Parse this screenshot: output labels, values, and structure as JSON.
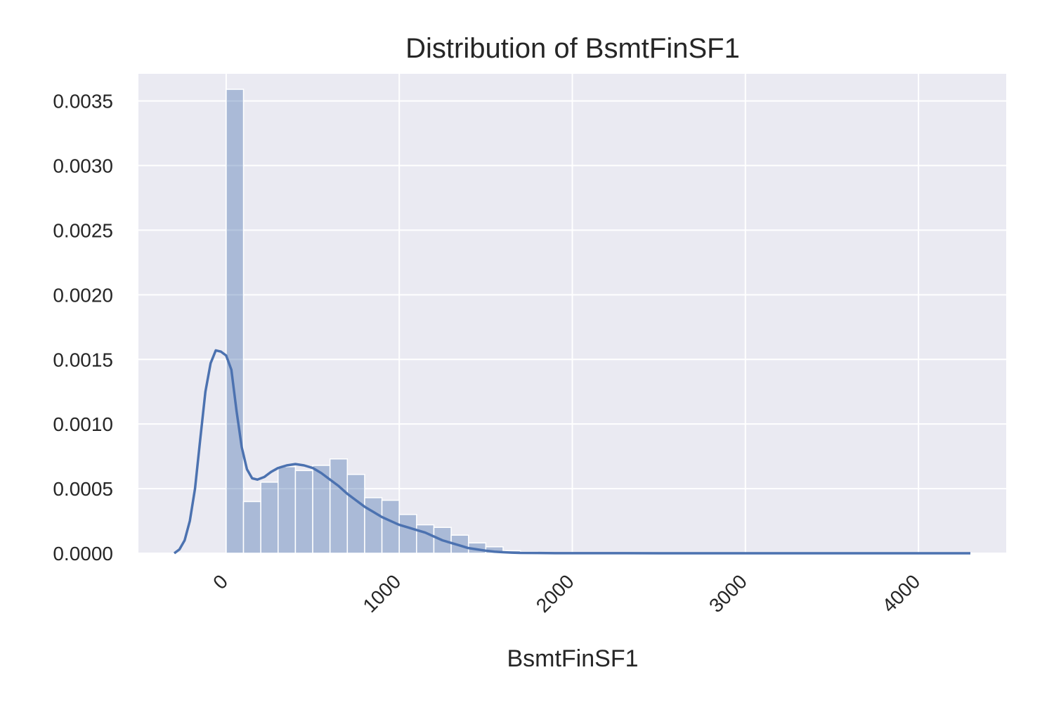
{
  "chart_data": {
    "type": "bar",
    "title": "Distribution of BsmtFinSF1",
    "xlabel": "BsmtFinSF1",
    "ylabel": "",
    "xlim": [
      -507,
      4507
    ],
    "ylim": [
      0,
      0.00371
    ],
    "x_ticks": [
      {
        "value": 0,
        "label": "0"
      },
      {
        "value": 1000,
        "label": "1000"
      },
      {
        "value": 2000,
        "label": "2000"
      },
      {
        "value": 3000,
        "label": "3000"
      },
      {
        "value": 4000,
        "label": "4000"
      }
    ],
    "y_ticks": [
      {
        "value": 0,
        "label": "0.0000"
      },
      {
        "value": 0.0005,
        "label": "0.0005"
      },
      {
        "value": 0.001,
        "label": "0.0010"
      },
      {
        "value": 0.0015,
        "label": "0.0015"
      },
      {
        "value": 0.002,
        "label": "0.0020"
      },
      {
        "value": 0.0025,
        "label": "0.0025"
      },
      {
        "value": 0.003,
        "label": "0.0030"
      },
      {
        "value": 0.0035,
        "label": "0.0035"
      }
    ],
    "grid": true,
    "histogram": {
      "bin_width": 100,
      "bins": [
        {
          "x0": 0,
          "value": 0.00359
        },
        {
          "x0": 100,
          "value": 0.0004
        },
        {
          "x0": 200,
          "value": 0.00055
        },
        {
          "x0": 300,
          "value": 0.00067
        },
        {
          "x0": 400,
          "value": 0.00064
        },
        {
          "x0": 500,
          "value": 0.00068
        },
        {
          "x0": 600,
          "value": 0.00073
        },
        {
          "x0": 700,
          "value": 0.00061
        },
        {
          "x0": 800,
          "value": 0.00043
        },
        {
          "x0": 900,
          "value": 0.00041
        },
        {
          "x0": 1000,
          "value": 0.0003
        },
        {
          "x0": 1100,
          "value": 0.00022
        },
        {
          "x0": 1200,
          "value": 0.0002
        },
        {
          "x0": 1300,
          "value": 0.00014
        },
        {
          "x0": 1400,
          "value": 8e-05
        },
        {
          "x0": 1500,
          "value": 5e-05
        },
        {
          "x0": 1600,
          "value": 2e-05
        },
        {
          "x0": 1700,
          "value": 1e-05
        }
      ]
    },
    "kde": {
      "x": [
        -300,
        -270,
        -240,
        -210,
        -180,
        -150,
        -120,
        -90,
        -60,
        -30,
        0,
        30,
        60,
        90,
        120,
        150,
        180,
        220,
        260,
        300,
        350,
        400,
        450,
        500,
        550,
        600,
        650,
        700,
        750,
        800,
        850,
        900,
        950,
        1000,
        1050,
        1100,
        1150,
        1200,
        1250,
        1300,
        1350,
        1400,
        1450,
        1500,
        1550,
        1600,
        1650,
        1700,
        1800,
        1900,
        2000,
        2200,
        2500,
        3000,
        3500,
        4000,
        4300
      ],
      "y": [
        0.0,
        3e-05,
        0.0001,
        0.00025,
        0.0005,
        0.00088,
        0.00125,
        0.00147,
        0.00157,
        0.00156,
        0.00153,
        0.00142,
        0.0011,
        0.00082,
        0.00065,
        0.00058,
        0.00057,
        0.00059,
        0.00063,
        0.00066,
        0.00068,
        0.00069,
        0.00068,
        0.00066,
        0.00062,
        0.00057,
        0.00052,
        0.00046,
        0.00041,
        0.00036,
        0.00032,
        0.00028,
        0.00025,
        0.00022,
        0.0002,
        0.00018,
        0.00016,
        0.00013,
        0.0001,
        8e-05,
        6e-05,
        4e-05,
        3e-05,
        2e-05,
        1.2e-05,
        8e-06,
        5e-06,
        3e-06,
        2e-06,
        1e-06,
        8e-07,
        5e-07,
        3e-07,
        2e-07,
        1e-07,
        1e-07,
        0.0
      ]
    },
    "colors": {
      "plot_background": "#eaeaf2",
      "grid": "#ffffff",
      "bar_fill": "#4c72b0",
      "bar_opacity": 0.4,
      "kde_line": "#4c72b0"
    }
  }
}
